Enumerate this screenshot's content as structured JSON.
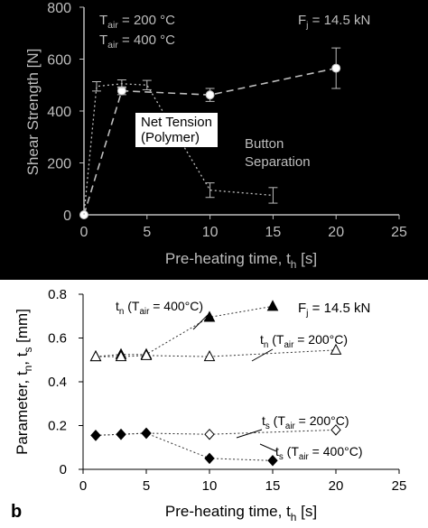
{
  "chart_data": [
    {
      "type": "line",
      "theme": "dark",
      "xlabel": "Pre-heating time, t",
      "xlabel_sub": "h",
      "xlabel_unit": "[s]",
      "ylabel": "Shear Strength [N]",
      "xlim": [
        0,
        25
      ],
      "ylim": [
        0,
        800
      ],
      "xticks": [
        0,
        5,
        10,
        15,
        20,
        25
      ],
      "yticks": [
        0,
        200,
        400,
        600,
        800
      ],
      "grid": false,
      "legend": [
        {
          "series": "tair200",
          "text": "T",
          "sub": "air",
          "rest": " = 200 °C"
        },
        {
          "series": "tair400",
          "text": "T",
          "sub": "air",
          "rest": " = 400 °C"
        }
      ],
      "force_label": {
        "text": "F",
        "sub": "j",
        "rest": " =  14.5 kN"
      },
      "annotations": [
        {
          "id": "net-tension",
          "lines": [
            "Net Tension",
            "(Polymer)"
          ]
        },
        {
          "id": "button-separation",
          "lines": [
            "Button",
            "Separation"
          ]
        }
      ],
      "series": [
        {
          "id": "tair200",
          "style": "dashed",
          "marker": "circle",
          "x": [
            0,
            3,
            10,
            20
          ],
          "y": [
            0,
            478,
            462,
            565
          ],
          "err": [
            0,
            15,
            25,
            78
          ]
        },
        {
          "id": "tair400",
          "style": "dotted",
          "marker": "none",
          "x": [
            0,
            1,
            3,
            5,
            10,
            15
          ],
          "y": [
            0,
            495,
            505,
            500,
            95,
            75
          ],
          "err": [
            0,
            18,
            15,
            18,
            28,
            30
          ]
        }
      ],
      "colors": {
        "background": "#000000",
        "foreground": "#bdbdbd",
        "marker": "#ffffff"
      }
    },
    {
      "type": "line",
      "theme": "light",
      "panel_label": "b",
      "xlabel": "Pre-heating time, t",
      "xlabel_sub": "h",
      "xlabel_unit": "[s]",
      "ylabel": "Parameter, t",
      "ylabel_parts": [
        {
          "text": "Parameter, t"
        },
        {
          "text": "n",
          "sub": true
        },
        {
          "text": ", t"
        },
        {
          "text": "s",
          "sub": true
        },
        {
          "text": " [mm]"
        }
      ],
      "xlim": [
        0,
        25
      ],
      "ylim": [
        0,
        0.8
      ],
      "xticks": [
        0,
        5,
        10,
        15,
        20,
        25
      ],
      "yticks": [
        0,
        0.2,
        0.4,
        0.6,
        0.8
      ],
      "grid": false,
      "force_label": {
        "text": "F",
        "sub": "j",
        "rest": " =  14.5 kN"
      },
      "series": [
        {
          "id": "tn400",
          "label": {
            "text": "t",
            "sub": "n",
            "rest": " (T",
            "sub2": "air",
            "rest2": " = 400°C)"
          },
          "marker": "triangle-filled",
          "x": [
            1,
            3,
            5,
            10,
            15
          ],
          "y": [
            0.515,
            0.525,
            0.525,
            0.695,
            0.745
          ]
        },
        {
          "id": "tn200",
          "label": {
            "text": "t",
            "sub": "n",
            "rest": " (T",
            "sub2": "air",
            "rest2": " = 200°C)"
          },
          "marker": "triangle-open",
          "x": [
            1,
            3,
            5,
            10,
            20
          ],
          "y": [
            0.515,
            0.515,
            0.52,
            0.515,
            0.545
          ]
        },
        {
          "id": "ts200",
          "label": {
            "text": "t",
            "sub": "s",
            "rest": " (T",
            "sub2": "air",
            "rest2": " = 200°C)"
          },
          "marker": "diamond-open",
          "x": [
            1,
            3,
            5,
            10,
            20
          ],
          "y": [
            0.155,
            0.16,
            0.165,
            0.16,
            0.18
          ]
        },
        {
          "id": "ts400",
          "label": {
            "text": "t",
            "sub": "s",
            "rest": " (T",
            "sub2": "air",
            "rest2": " = 400°C)"
          },
          "marker": "diamond-filled",
          "x": [
            1,
            3,
            5,
            10,
            15
          ],
          "y": [
            0.155,
            0.16,
            0.165,
            0.05,
            0.04
          ]
        }
      ],
      "colors": {
        "background": "#ffffff",
        "foreground": "#000000"
      }
    }
  ]
}
